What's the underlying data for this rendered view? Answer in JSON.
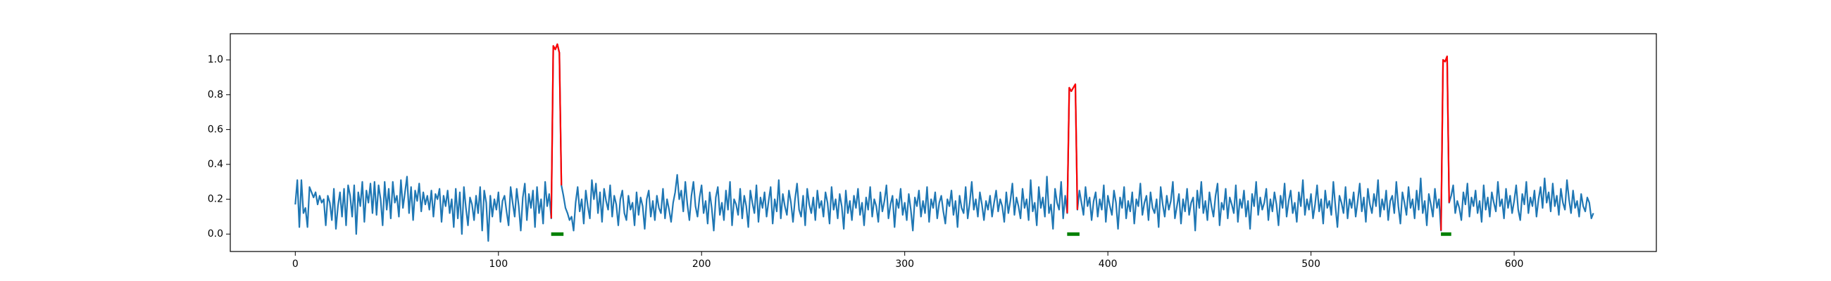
{
  "chart_data": {
    "type": "line",
    "xlim": [
      -32,
      670
    ],
    "ylim": [
      -0.1,
      1.15
    ],
    "xticks": [
      0,
      100,
      200,
      300,
      400,
      500,
      600
    ],
    "yticks": [
      {
        "value": 0,
        "label": "0.0"
      },
      {
        "value": 0.2,
        "label": "0.2"
      },
      {
        "value": 0.4,
        "label": "0.4"
      },
      {
        "value": 0.6,
        "label": "0.6"
      },
      {
        "value": 0.8,
        "label": "0.8"
      },
      {
        "value": 1.0,
        "label": "1.0"
      }
    ],
    "series": [
      {
        "color": "#1f77b4",
        "values": [
          0.17,
          0.31,
          0.04,
          0.31,
          0.12,
          0.15,
          0.04,
          0.27,
          0.24,
          0.21,
          0.24,
          0.17,
          0.22,
          0.18,
          0.2,
          0.05,
          0.22,
          0.18,
          0.08,
          0.26,
          0.03,
          0.16,
          0.24,
          0.1,
          0.26,
          0.05,
          0.28,
          0.22,
          0.1,
          0.28,
          0.0,
          0.24,
          0.16,
          0.3,
          0.07,
          0.25,
          0.18,
          0.29,
          0.12,
          0.3,
          0.11,
          0.28,
          0.2,
          0.05,
          0.3,
          0.14,
          0.26,
          0.09,
          0.3,
          0.18,
          0.22,
          0.1,
          0.31,
          0.15,
          0.24,
          0.33,
          0.12,
          0.27,
          0.08,
          0.25,
          0.19,
          0.29,
          0.13,
          0.24,
          0.17,
          0.22,
          0.14,
          0.25,
          0.1,
          0.23,
          0.2,
          0.26,
          0.07,
          0.22,
          0.16,
          0.25,
          0.12,
          0.2,
          0.04,
          0.26,
          0.09,
          0.24,
          0.0,
          0.27,
          0.15,
          0.05,
          0.21,
          0.17,
          0.08,
          0.22,
          0.12,
          0.27,
          0.02,
          0.25,
          0.18,
          -0.04,
          0.22,
          0.1,
          0.2,
          0.14,
          0.24,
          0.07,
          0.19,
          0.22,
          0.13,
          0.05,
          0.27,
          0.18,
          0.1,
          0.26,
          0.16,
          0.02,
          0.21,
          0.29,
          0.08,
          0.23,
          0.15,
          0.25,
          0.04,
          0.27,
          0.12,
          0.2,
          0.06,
          0.3,
          0.16,
          0.23,
          0.09,
          1.08,
          1.06,
          1.09,
          1.04,
          0.28,
          0.22,
          0.15,
          0.12,
          0.08,
          0.1,
          0.02,
          0.18,
          0.27,
          0.13,
          0.2,
          0.06,
          0.25,
          0.16,
          0.09,
          0.31,
          0.2,
          0.29,
          0.12,
          0.24,
          0.07,
          0.26,
          0.19,
          0.14,
          0.28,
          0.1,
          0.22,
          0.17,
          0.05,
          0.2,
          0.25,
          0.12,
          0.08,
          0.22,
          0.14,
          0.18,
          0.05,
          0.24,
          0.11,
          0.21,
          0.16,
          0.03,
          0.2,
          0.25,
          0.1,
          0.19,
          0.08,
          0.22,
          0.15,
          0.12,
          0.26,
          0.09,
          0.2,
          0.14,
          0.07,
          0.18,
          0.24,
          0.34,
          0.2,
          0.25,
          0.13,
          0.3,
          0.17,
          0.08,
          0.22,
          0.3,
          0.16,
          0.1,
          0.21,
          0.28,
          0.12,
          0.19,
          0.06,
          0.24,
          0.15,
          0.02,
          0.21,
          0.27,
          0.11,
          0.18,
          0.08,
          0.25,
          0.14,
          0.3,
          0.05,
          0.2,
          0.17,
          0.11,
          0.26,
          0.09,
          0.22,
          0.16,
          0.04,
          0.25,
          0.18,
          0.12,
          0.28,
          0.07,
          0.21,
          0.15,
          0.24,
          0.1,
          0.19,
          0.27,
          0.06,
          0.2,
          0.13,
          0.31,
          0.09,
          0.23,
          0.16,
          0.11,
          0.25,
          0.18,
          0.07,
          0.2,
          0.29,
          0.14,
          0.1,
          0.22,
          0.05,
          0.26,
          0.17,
          0.12,
          0.21,
          0.08,
          0.25,
          0.15,
          0.19,
          0.1,
          0.24,
          0.18,
          0.06,
          0.27,
          0.14,
          0.2,
          0.09,
          0.23,
          0.16,
          0.03,
          0.25,
          0.12,
          0.19,
          0.08,
          0.22,
          0.15,
          0.26,
          0.11,
          0.18,
          0.05,
          0.21,
          0.14,
          0.27,
          0.1,
          0.2,
          0.16,
          0.07,
          0.24,
          0.13,
          0.19,
          0.28,
          0.09,
          0.17,
          0.22,
          0.04,
          0.2,
          0.15,
          0.26,
          0.11,
          0.18,
          0.08,
          0.23,
          0.14,
          0.02,
          0.21,
          0.16,
          0.25,
          0.1,
          0.19,
          0.12,
          0.27,
          0.07,
          0.2,
          0.15,
          0.24,
          0.09,
          0.18,
          0.22,
          0.13,
          0.06,
          0.2,
          0.16,
          0.25,
          0.11,
          0.19,
          0.04,
          0.22,
          0.15,
          0.12,
          0.27,
          0.09,
          0.18,
          0.3,
          0.14,
          0.2,
          0.1,
          0.24,
          0.17,
          0.08,
          0.19,
          0.14,
          0.22,
          0.1,
          0.18,
          0.25,
          0.13,
          0.2,
          0.16,
          0.07,
          0.24,
          0.12,
          0.19,
          0.29,
          0.11,
          0.21,
          0.16,
          0.09,
          0.26,
          0.15,
          0.2,
          0.08,
          0.31,
          0.13,
          0.18,
          0.05,
          0.27,
          0.15,
          0.21,
          0.1,
          0.33,
          0.12,
          0.17,
          0.03,
          0.26,
          0.18,
          0.14,
          0.3,
          0.09,
          0.22,
          0.12,
          0.84,
          0.82,
          0.84,
          0.86,
          0.14,
          0.25,
          0.18,
          0.11,
          0.27,
          0.16,
          0.21,
          0.08,
          0.19,
          0.24,
          0.1,
          0.2,
          0.14,
          0.28,
          0.07,
          0.22,
          0.16,
          0.11,
          0.25,
          0.18,
          0.03,
          0.21,
          0.15,
          0.27,
          0.09,
          0.19,
          0.13,
          0.24,
          0.06,
          0.2,
          0.16,
          0.29,
          0.11,
          0.18,
          0.22,
          0.08,
          0.24,
          0.15,
          0.12,
          0.2,
          0.04,
          0.27,
          0.17,
          0.1,
          0.22,
          0.14,
          0.19,
          0.3,
          0.09,
          0.16,
          0.23,
          0.06,
          0.2,
          0.13,
          0.26,
          0.11,
          0.18,
          0.21,
          0.02,
          0.25,
          0.15,
          0.3,
          0.12,
          0.19,
          0.08,
          0.24,
          0.16,
          0.1,
          0.22,
          0.29,
          0.05,
          0.18,
          0.14,
          0.26,
          0.09,
          0.21,
          0.17,
          0.12,
          0.28,
          0.07,
          0.2,
          0.15,
          0.25,
          0.1,
          0.19,
          0.03,
          0.23,
          0.16,
          0.3,
          0.11,
          0.21,
          0.14,
          0.18,
          0.26,
          0.08,
          0.2,
          0.13,
          0.24,
          0.17,
          0.05,
          0.22,
          0.15,
          0.29,
          0.1,
          0.19,
          0.25,
          0.12,
          0.18,
          0.07,
          0.24,
          0.16,
          0.31,
          0.11,
          0.2,
          0.14,
          0.23,
          0.09,
          0.17,
          0.28,
          0.13,
          0.2,
          0.06,
          0.25,
          0.15,
          0.19,
          0.11,
          0.3,
          0.16,
          0.04,
          0.22,
          0.18,
          0.12,
          0.27,
          0.09,
          0.2,
          0.15,
          0.24,
          0.1,
          0.19,
          0.29,
          0.13,
          0.21,
          0.07,
          0.26,
          0.17,
          0.12,
          0.23,
          0.16,
          0.31,
          0.1,
          0.2,
          0.14,
          0.25,
          0.08,
          0.19,
          0.22,
          0.12,
          0.3,
          0.16,
          0.06,
          0.24,
          0.18,
          0.11,
          0.27,
          0.15,
          0.2,
          0.09,
          0.25,
          0.14,
          0.32,
          0.12,
          0.19,
          0.05,
          0.23,
          0.17,
          0.1,
          0.26,
          0.15,
          0.2,
          0.02,
          1.0,
          0.99,
          1.02,
          0.18,
          0.22,
          0.28,
          0.12,
          0.19,
          0.15,
          0.08,
          0.24,
          0.17,
          0.29,
          0.1,
          0.21,
          0.16,
          0.25,
          0.12,
          0.19,
          0.07,
          0.28,
          0.14,
          0.21,
          0.1,
          0.24,
          0.18,
          0.13,
          0.3,
          0.16,
          0.2,
          0.09,
          0.26,
          0.15,
          0.22,
          0.12,
          0.19,
          0.28,
          0.14,
          0.08,
          0.23,
          0.17,
          0.3,
          0.12,
          0.21,
          0.16,
          0.25,
          0.1,
          0.2,
          0.27,
          0.15,
          0.32,
          0.18,
          0.24,
          0.13,
          0.29,
          0.16,
          0.22,
          0.11,
          0.26,
          0.18,
          0.14,
          0.31,
          0.2,
          0.12,
          0.25,
          0.15,
          0.19,
          0.1,
          0.23,
          0.16,
          0.13,
          0.21,
          0.18,
          0.09,
          0.12
        ]
      },
      {
        "color": "#ff0000",
        "x": [
          126,
          127,
          128,
          129,
          130,
          131
        ],
        "values": [
          0.09,
          1.08,
          1.06,
          1.09,
          1.04,
          0.28
        ]
      },
      {
        "color": "#ff0000",
        "x": [
          380,
          381,
          382,
          383,
          384,
          385
        ],
        "values": [
          0.12,
          0.84,
          0.82,
          0.84,
          0.86,
          0.14
        ]
      },
      {
        "color": "#ff0000",
        "x": [
          564,
          565,
          566,
          567,
          568
        ],
        "values": [
          0.02,
          1.0,
          0.99,
          1.02,
          0.18
        ]
      },
      {
        "color": "#008000",
        "marker": true,
        "x": [
          127,
          128,
          129,
          130,
          131
        ],
        "values": [
          0,
          0,
          0,
          0,
          0
        ]
      },
      {
        "color": "#008000",
        "marker": true,
        "x": [
          381,
          382,
          383,
          384,
          385
        ],
        "values": [
          0,
          0,
          0,
          0,
          0
        ]
      },
      {
        "color": "#008000",
        "marker": true,
        "x": [
          565,
          566,
          567,
          568
        ],
        "values": [
          0,
          0,
          0,
          0
        ]
      }
    ]
  }
}
